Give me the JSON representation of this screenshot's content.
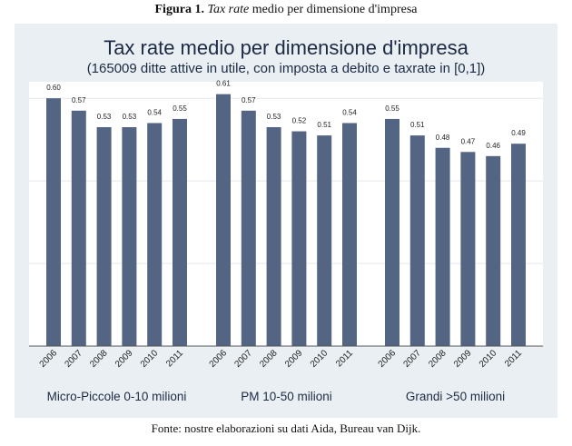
{
  "caption": {
    "prefix": "Figura 1.",
    "italic": "Tax rate",
    "rest": "medio per dimensione d'impresa"
  },
  "footer": "Fonte: nostre elaborazioni su dati Aida, Bureau van Dijk.",
  "colors": {
    "bar": "#536583",
    "panel": "#e9eff2",
    "text": "#1c2a44"
  },
  "chart_data": {
    "type": "bar",
    "title": "Tax rate medio per dimensione d'impresa",
    "subtitle": "(165009 ditte attive in utile, con imposta a debito e taxrate in [0,1])",
    "ylim": [
      0,
      0.64
    ],
    "gridlines": [
      0.2,
      0.4,
      0.6
    ],
    "groups": [
      {
        "name": "Micro-Piccole 0-10 milioni",
        "categories": [
          "2006",
          "2007",
          "2008",
          "2009",
          "2010",
          "2011"
        ],
        "values": [
          0.6,
          0.57,
          0.53,
          0.53,
          0.54,
          0.55
        ],
        "labels": [
          "0.60",
          "0.57",
          "0.53",
          "0.53",
          "0.54",
          "0.55"
        ]
      },
      {
        "name": "PM 10-50 milioni",
        "categories": [
          "2006",
          "2007",
          "2008",
          "2009",
          "2010",
          "2011"
        ],
        "values": [
          0.61,
          0.57,
          0.53,
          0.52,
          0.51,
          0.54
        ],
        "labels": [
          "0.61",
          "0.57",
          "0.53",
          "0.52",
          "0.51",
          "0.54"
        ]
      },
      {
        "name": "Grandi >50 milioni",
        "categories": [
          "2006",
          "2007",
          "2008",
          "2009",
          "2010",
          "2011"
        ],
        "values": [
          0.55,
          0.51,
          0.48,
          0.47,
          0.46,
          0.49
        ],
        "labels": [
          "0.55",
          "0.51",
          "0.48",
          "0.47",
          "0.46",
          "0.49"
        ]
      }
    ]
  }
}
